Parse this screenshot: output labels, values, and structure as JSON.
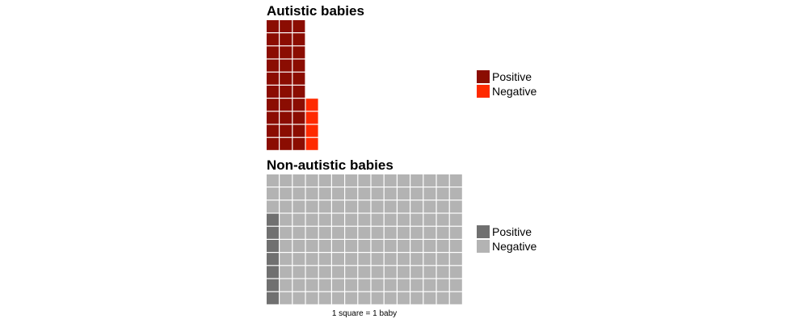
{
  "chart_data": [
    {
      "type": "waffle",
      "title": "Autistic babies",
      "rows": 10,
      "series": [
        {
          "name": "Positive",
          "value": 30,
          "color": "#8B0D02"
        },
        {
          "name": "Negative",
          "value": 4,
          "color": "#FF2A00"
        }
      ],
      "legend_position": "right"
    },
    {
      "type": "waffle",
      "title": "Non-autistic babies",
      "rows": 10,
      "series": [
        {
          "name": "Positive",
          "value": 7,
          "color": "#707070"
        },
        {
          "name": "Negative",
          "value": 143,
          "color": "#B3B3B3"
        }
      ],
      "legend_position": "right"
    }
  ],
  "caption": "1 square = 1 baby"
}
